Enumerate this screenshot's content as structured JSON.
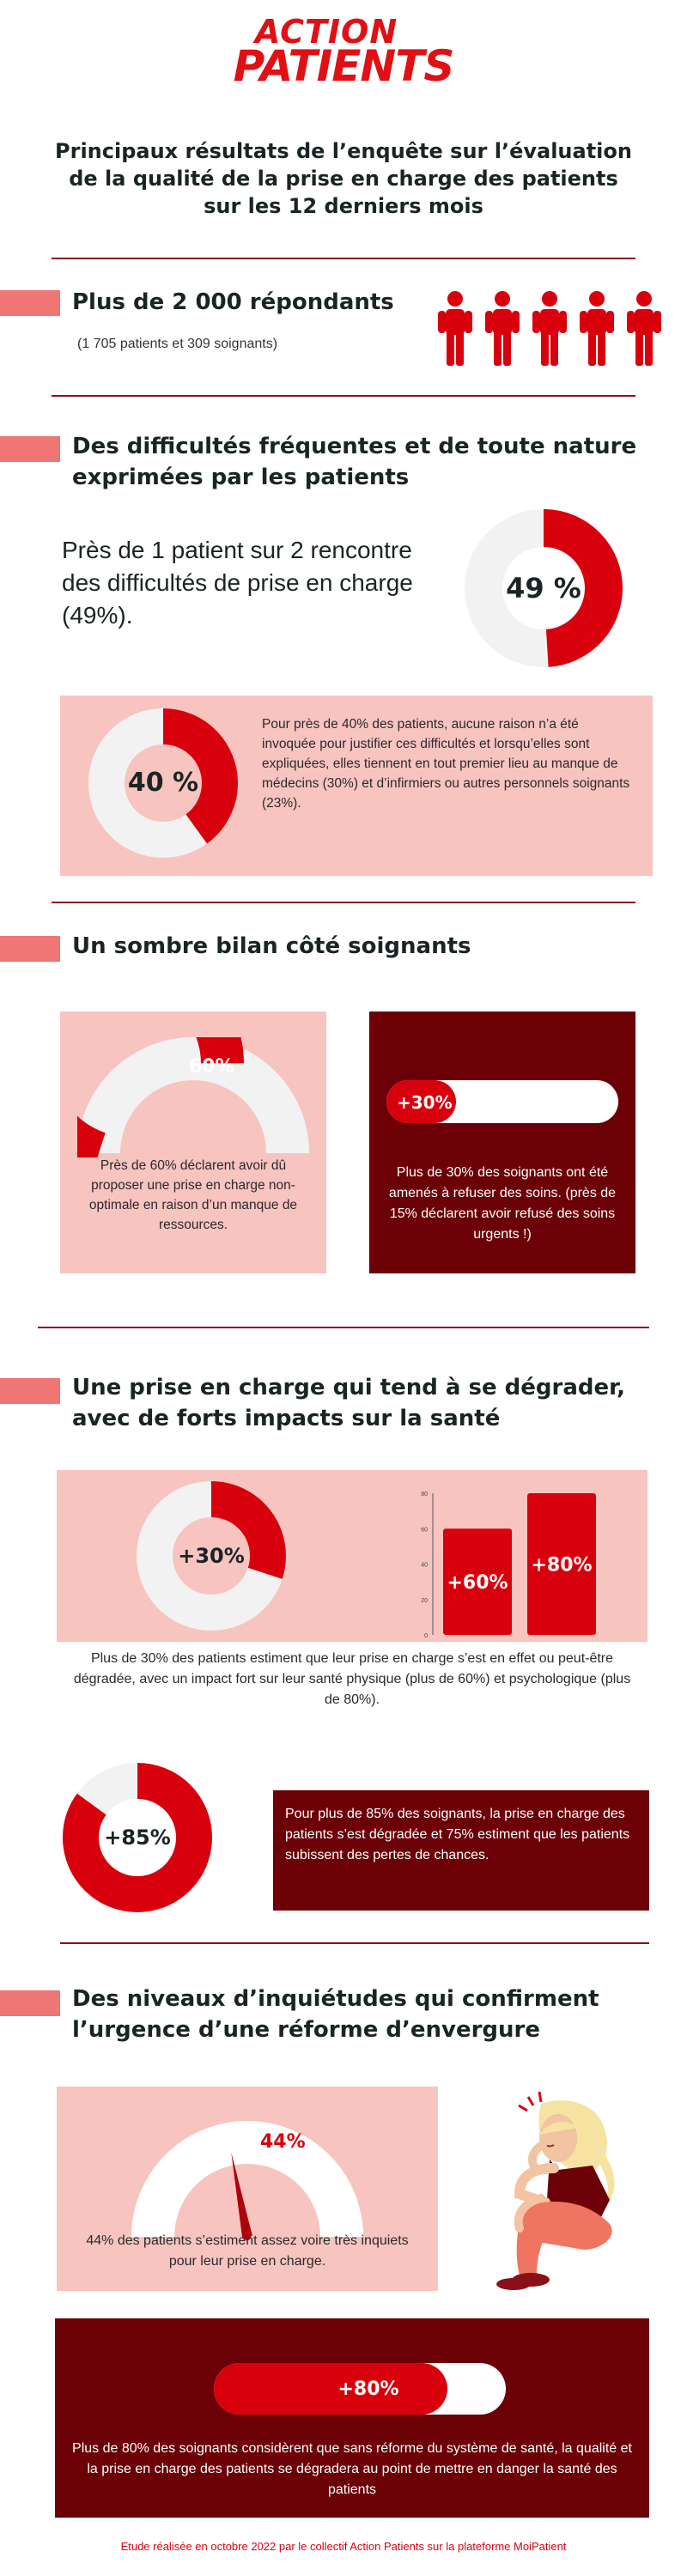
{
  "logo": {
    "line1": "ACTION",
    "line2": "PATIENTS"
  },
  "title": "Principaux résultats de l’enquête sur l’évaluation de la qualité de la prise en charge des patients sur les 12 derniers mois",
  "respondents": {
    "heading": "Plus de 2 000 répondants",
    "detail": "(1 705 patients et 309 soignants)"
  },
  "section1": {
    "title": "Des difficultés fréquentes et de toute nature exprimées par les patients",
    "stat_text": "Près de 1 patient sur 2 rencontre des difficultés de prise en charge (49%).",
    "donut_label": "49 %",
    "donut_value": 49,
    "box_donut_label": "40 %",
    "box_donut_value": 40,
    "box_text": "Pour près de 40% des patients, aucune raison n’a été invoquée pour justifier ces difficultés et lorsqu’elles sont expliquées, elles tiennent en tout premier lieu au manque de médecins (30%) et d’infirmiers ou autres personnels soignants (23%)."
  },
  "section2": {
    "title": "Un sombre bilan côté soignants",
    "gauge_label": "60%",
    "gauge_value": 60,
    "left_text": "Près de 60% déclarent avoir dû proposer une prise en charge non-optimale en raison d’un manque de ressources.",
    "pill_label": "+30%",
    "pill_value": 30,
    "right_text": "Plus de 30% des soignants ont été amenés à refuser des soins. (près de 15% déclarent avoir refusé des soins urgents !)"
  },
  "section3": {
    "title": "Une prise en charge qui tend à se dégrader, avec de forts impacts sur la santé",
    "donut_label": "+30%",
    "donut_value": 30,
    "bars": [
      {
        "label": "+60%",
        "value": 60
      },
      {
        "label": "+80%",
        "value": 80
      }
    ],
    "bar_ticks": [
      "80",
      "60",
      "40",
      "20",
      "0"
    ],
    "caption": "Plus de 30% des patients estiment que leur prise en charge s’est en effet ou peut-être dégradée, avec un impact fort sur leur santé physique (plus de 60%) et psychologique (plus de 80%).",
    "donut2_label": "+85%",
    "donut2_value": 85,
    "box_text": "Pour plus de 85% des soignants, la prise en charge des patients s’est dégradée et 75% estiment que les patients subissent des pertes de chances."
  },
  "section4": {
    "title": "Des niveaux d’inquiétudes qui confirment l’urgence d’une réforme d’envergure",
    "gauge_label": "44%",
    "gauge_value": 44,
    "gauge_text": "44% des patients s’estiment assez voire très inquiets pour leur prise en charge.",
    "pill_label": "+80%",
    "pill_value": 80,
    "box_text": "Plus de 80% des soignants considèrent que sans réforme du système de santé, la qualité et la prise en charge des patients se dégradera au point de mettre en danger la santé des patients"
  },
  "footer": "Etude réalisée en octobre 2022 par le collectif Action Patients sur la plateforme MoiPatient",
  "colors": {
    "red": "#d9000d",
    "dark": "#6b0007",
    "pink": "#f7c4c0",
    "grey": "#f2f2f2"
  }
}
